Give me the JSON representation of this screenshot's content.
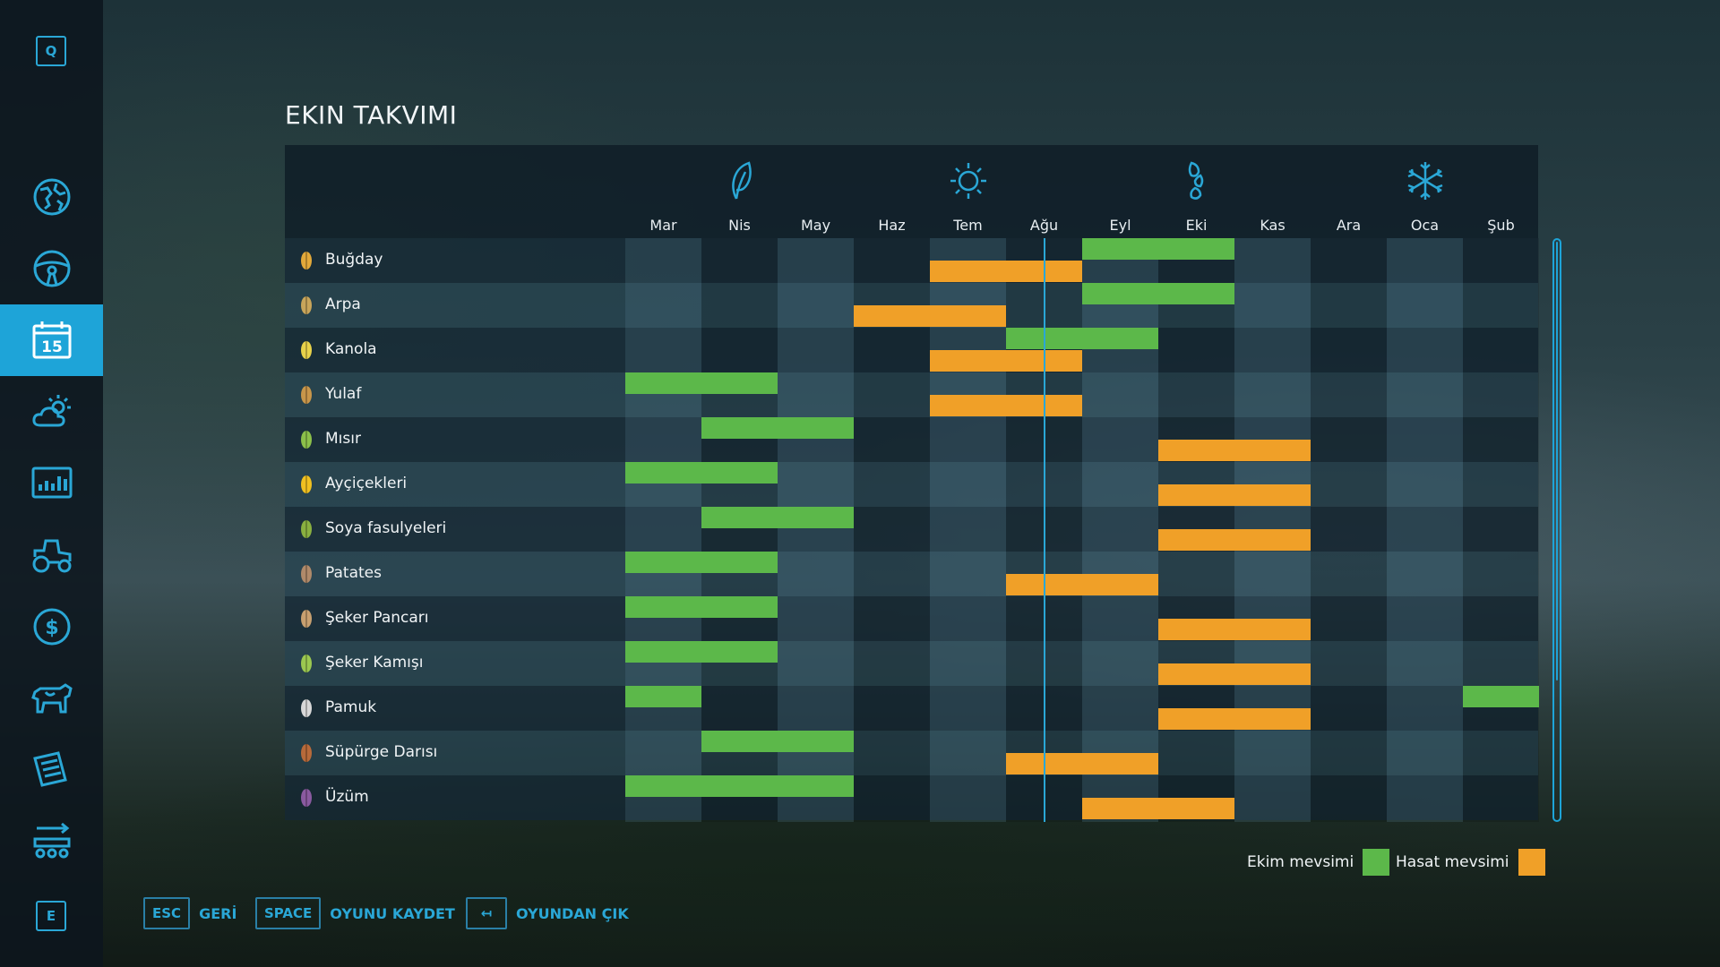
{
  "sidebar": {
    "top_key": "Q",
    "bottom_key": "E",
    "items": [
      {
        "icon": "map-icon"
      },
      {
        "icon": "steering-wheel-icon"
      },
      {
        "icon": "calendar-icon",
        "label": "15",
        "active": true
      },
      {
        "icon": "weather-icon"
      },
      {
        "icon": "statistics-icon"
      },
      {
        "icon": "tractor-icon"
      },
      {
        "icon": "finances-icon"
      },
      {
        "icon": "animals-icon"
      },
      {
        "icon": "contracts-icon"
      },
      {
        "icon": "production-icon"
      }
    ]
  },
  "title": "EKIN TAKVIMI",
  "seasons": [
    {
      "name": "spring",
      "icon": "leaf-icon",
      "month_index": 1
    },
    {
      "name": "summer",
      "icon": "sun-icon",
      "month_index": 4
    },
    {
      "name": "autumn",
      "icon": "falling-leaves-icon",
      "month_index": 7
    },
    {
      "name": "winter",
      "icon": "snowflake-icon",
      "month_index": 10
    }
  ],
  "months": [
    "Mar",
    "Nis",
    "May",
    "Haz",
    "Tem",
    "Ağu",
    "Eyl",
    "Eki",
    "Kas",
    "Ara",
    "Oca",
    "Şub"
  ],
  "current_month_position": 5.5,
  "crops": [
    {
      "name": "Buğday",
      "icon": "wheat-icon",
      "sow": [
        [
          6,
          2
        ]
      ],
      "harvest": [
        [
          4,
          2
        ]
      ]
    },
    {
      "name": "Arpa",
      "icon": "barley-icon",
      "sow": [
        [
          6,
          2
        ]
      ],
      "harvest": [
        [
          3,
          2
        ]
      ]
    },
    {
      "name": "Kanola",
      "icon": "canola-icon",
      "sow": [
        [
          5,
          2
        ]
      ],
      "harvest": [
        [
          4,
          2
        ]
      ]
    },
    {
      "name": "Yulaf",
      "icon": "oat-icon",
      "sow": [
        [
          0,
          2
        ]
      ],
      "harvest": [
        [
          4,
          2
        ]
      ]
    },
    {
      "name": "Mısır",
      "icon": "maize-icon",
      "sow": [
        [
          1,
          2
        ]
      ],
      "harvest": [
        [
          7,
          2
        ]
      ]
    },
    {
      "name": "Ayçiçekleri",
      "icon": "sunflower-icon",
      "sow": [
        [
          0,
          2
        ]
      ],
      "harvest": [
        [
          7,
          2
        ]
      ]
    },
    {
      "name": "Soya fasulyeleri",
      "icon": "soybean-icon",
      "sow": [
        [
          1,
          2
        ]
      ],
      "harvest": [
        [
          7,
          2
        ]
      ]
    },
    {
      "name": "Patates",
      "icon": "potato-icon",
      "sow": [
        [
          0,
          2
        ]
      ],
      "harvest": [
        [
          5,
          2
        ]
      ]
    },
    {
      "name": "Şeker Pancarı",
      "icon": "sugarbeet-icon",
      "sow": [
        [
          0,
          2
        ]
      ],
      "harvest": [
        [
          7,
          2
        ]
      ]
    },
    {
      "name": "Şeker Kamışı",
      "icon": "sugarcane-icon",
      "sow": [
        [
          0,
          2
        ]
      ],
      "harvest": [
        [
          7,
          2
        ]
      ]
    },
    {
      "name": "Pamuk",
      "icon": "cotton-icon",
      "sow": [
        [
          0,
          1
        ],
        [
          11,
          1
        ]
      ],
      "harvest": [
        [
          7,
          2
        ]
      ]
    },
    {
      "name": "Süpürge Darısı",
      "icon": "sorghum-icon",
      "sow": [
        [
          1,
          2
        ]
      ],
      "harvest": [
        [
          5,
          2
        ]
      ]
    },
    {
      "name": "Üzüm",
      "icon": "grape-icon",
      "sow": [
        [
          0,
          3
        ]
      ],
      "harvest": [
        [
          6,
          2
        ]
      ]
    }
  ],
  "legend": {
    "sow_label": "Ekim mevsimi",
    "harvest_label": "Hasat mevsimi",
    "sow_color": "#5cb84a",
    "harvest_color": "#f0a028"
  },
  "actions": [
    {
      "key": "ESC",
      "label": "GERİ"
    },
    {
      "key": "SPACE",
      "label": "OYUNU KAYDET"
    },
    {
      "key": "↤",
      "label": "OYUNDAN ÇIK"
    }
  ]
}
